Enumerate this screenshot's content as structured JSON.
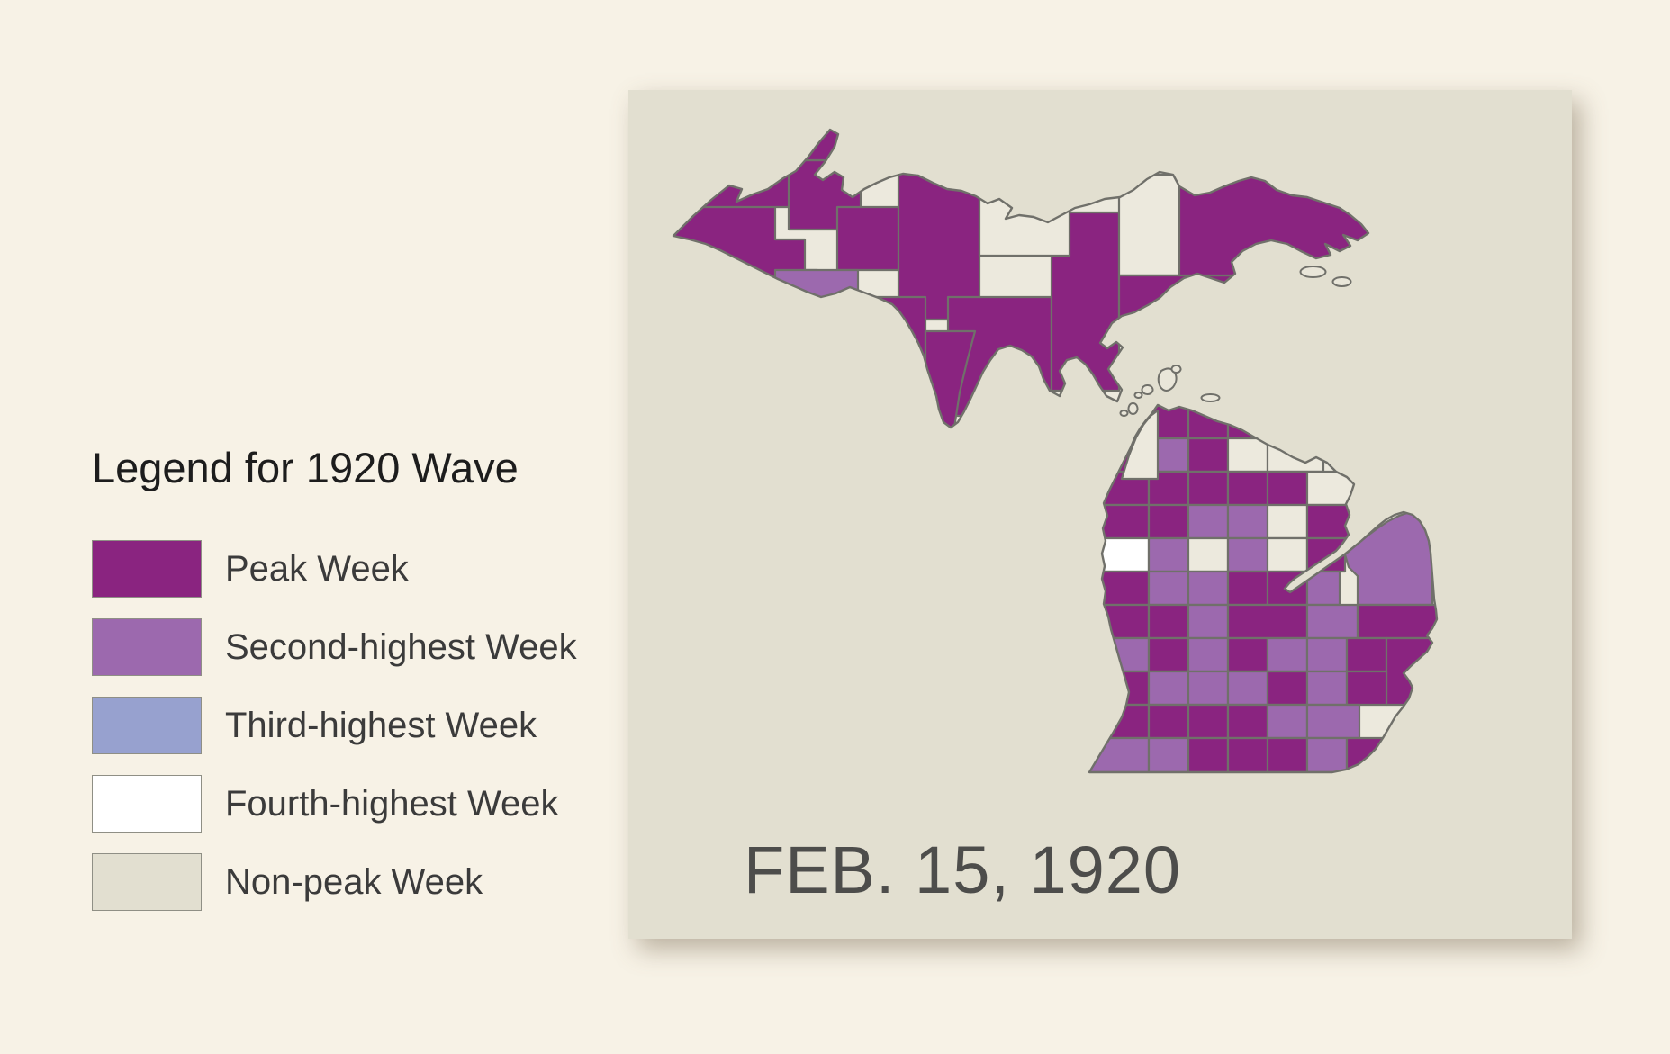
{
  "page": {
    "background": "#F7F2E6"
  },
  "legend": {
    "title": "Legend for 1920 Wave",
    "items": [
      {
        "label": "Peak Week",
        "category": "peak",
        "color": "#8A2480"
      },
      {
        "label": "Second-highest Week",
        "category": "second",
        "color": "#9C69AE"
      },
      {
        "label": "Third-highest Week",
        "category": "third",
        "color": "#97A1CF"
      },
      {
        "label": "Fourth-highest Week",
        "category": "fourth",
        "color": "#FFFFFF"
      },
      {
        "label": "Non-peak Week",
        "category": "nonpeak",
        "color": "#E2DFD0"
      }
    ]
  },
  "map_panel": {
    "date_label": "FEB. 15, 1920",
    "background": "#E2DFD0",
    "border_color": "#70706A",
    "category_fills": {
      "peak": "#8A2480",
      "second": "#9C69AE",
      "third": "#97A1CF",
      "fourth": "#FFFFFF",
      "nonpeak": "#ECE9DD"
    }
  },
  "chart_data": {
    "type": "choropleth",
    "region": "Michigan counties",
    "date": "FEB. 15, 1920",
    "legend_title": "Legend for 1920 Wave",
    "categories": [
      "peak",
      "second",
      "third",
      "fourth",
      "nonpeak"
    ],
    "counties": [
      {
        "name": "Gogebic",
        "category": "peak"
      },
      {
        "name": "Houghton",
        "category": "peak"
      },
      {
        "name": "Keweenaw",
        "category": "peak"
      },
      {
        "name": "Ontonagon",
        "category": "peak"
      },
      {
        "name": "Baraga",
        "category": "peak"
      },
      {
        "name": "Marquette",
        "category": "peak"
      },
      {
        "name": "Iron",
        "category": "second"
      },
      {
        "name": "Dickinson",
        "category": "peak"
      },
      {
        "name": "Delta",
        "category": "peak"
      },
      {
        "name": "Menominee",
        "category": "peak"
      },
      {
        "name": "Schoolcraft",
        "category": "peak"
      },
      {
        "name": "Alger",
        "category": "nonpeak"
      },
      {
        "name": "Luce",
        "category": "nonpeak"
      },
      {
        "name": "Mackinac",
        "category": "peak"
      },
      {
        "name": "Chippewa",
        "category": "peak"
      },
      {
        "name": "Emmet",
        "category": "peak"
      },
      {
        "name": "Cheboygan",
        "category": "peak"
      },
      {
        "name": "Presque Isle",
        "category": "peak"
      },
      {
        "name": "Charlevoix",
        "category": "peak"
      },
      {
        "name": "Antrim",
        "category": "second"
      },
      {
        "name": "Otsego",
        "category": "peak"
      },
      {
        "name": "Montmorency",
        "category": "nonpeak"
      },
      {
        "name": "Alpena",
        "category": "nonpeak"
      },
      {
        "name": "Benzie",
        "category": "peak"
      },
      {
        "name": "Grand Traverse",
        "category": "peak"
      },
      {
        "name": "Kalkaska",
        "category": "peak"
      },
      {
        "name": "Crawford",
        "category": "peak"
      },
      {
        "name": "Oscoda",
        "category": "peak"
      },
      {
        "name": "Alcona",
        "category": "nonpeak"
      },
      {
        "name": "Leelanau",
        "category": "nonpeak"
      },
      {
        "name": "Manistee",
        "category": "peak"
      },
      {
        "name": "Wexford",
        "category": "peak"
      },
      {
        "name": "Missaukee",
        "category": "second"
      },
      {
        "name": "Roscommon",
        "category": "second"
      },
      {
        "name": "Ogemaw",
        "category": "nonpeak"
      },
      {
        "name": "Iosco",
        "category": "peak"
      },
      {
        "name": "Mason",
        "category": "fourth"
      },
      {
        "name": "Lake",
        "category": "second"
      },
      {
        "name": "Osceola",
        "category": "nonpeak"
      },
      {
        "name": "Clare",
        "category": "second"
      },
      {
        "name": "Gladwin",
        "category": "nonpeak"
      },
      {
        "name": "Arenac",
        "category": "peak"
      },
      {
        "name": "Oceana",
        "category": "peak"
      },
      {
        "name": "Newaygo",
        "category": "second"
      },
      {
        "name": "Mecosta",
        "category": "second"
      },
      {
        "name": "Isabella",
        "category": "peak"
      },
      {
        "name": "Midland",
        "category": "peak"
      },
      {
        "name": "Bay",
        "category": "second"
      },
      {
        "name": "Huron",
        "category": "second"
      },
      {
        "name": "Muskegon",
        "category": "peak"
      },
      {
        "name": "Montcalm",
        "category": "peak"
      },
      {
        "name": "Gratiot",
        "category": "second"
      },
      {
        "name": "Saginaw",
        "category": "peak"
      },
      {
        "name": "Tuscola",
        "category": "second"
      },
      {
        "name": "Sanilac",
        "category": "peak"
      },
      {
        "name": "Ottawa",
        "category": "second"
      },
      {
        "name": "Kent",
        "category": "peak"
      },
      {
        "name": "Ionia",
        "category": "second"
      },
      {
        "name": "Clinton",
        "category": "peak"
      },
      {
        "name": "Shiawassee",
        "category": "second"
      },
      {
        "name": "Genesee",
        "category": "second"
      },
      {
        "name": "Lapeer",
        "category": "peak"
      },
      {
        "name": "St. Clair",
        "category": "peak"
      },
      {
        "name": "Allegan",
        "category": "peak"
      },
      {
        "name": "Barry",
        "category": "second"
      },
      {
        "name": "Eaton",
        "category": "second"
      },
      {
        "name": "Ingham",
        "category": "second"
      },
      {
        "name": "Livingston",
        "category": "peak"
      },
      {
        "name": "Oakland",
        "category": "second"
      },
      {
        "name": "Macomb",
        "category": "peak"
      },
      {
        "name": "Van Buren",
        "category": "peak"
      },
      {
        "name": "Kalamazoo",
        "category": "peak"
      },
      {
        "name": "Calhoun",
        "category": "peak"
      },
      {
        "name": "Jackson",
        "category": "peak"
      },
      {
        "name": "Washtenaw",
        "category": "second"
      },
      {
        "name": "Wayne",
        "category": "second"
      },
      {
        "name": "Berrien",
        "category": "second"
      },
      {
        "name": "Cass",
        "category": "second"
      },
      {
        "name": "St. Joseph",
        "category": "peak"
      },
      {
        "name": "Branch",
        "category": "peak"
      },
      {
        "name": "Hillsdale",
        "category": "peak"
      },
      {
        "name": "Lenawee",
        "category": "second"
      },
      {
        "name": "Monroe",
        "category": "peak"
      }
    ]
  }
}
